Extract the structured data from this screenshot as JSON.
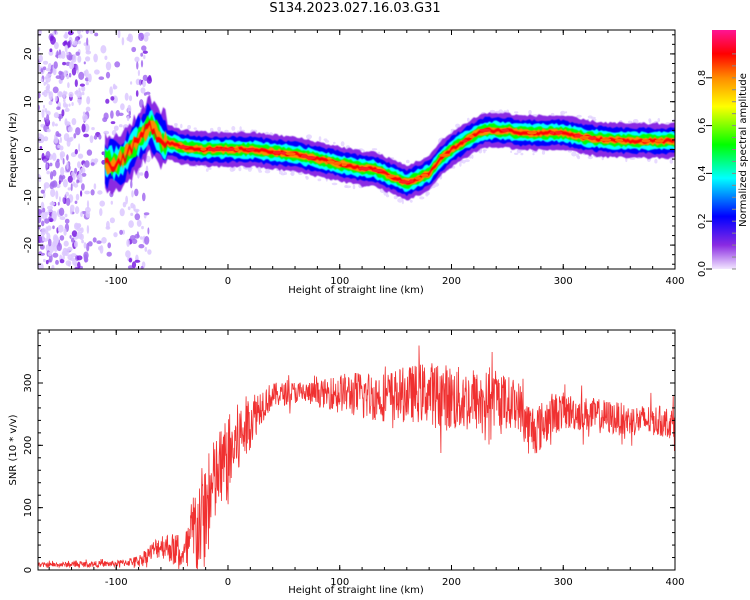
{
  "title": "S134.2023.027.16.03.G31",
  "chart_data": [
    {
      "type": "heatmap",
      "name": "spectrogram",
      "xlabel": "Height of straight line (km)",
      "ylabel": "Frequency (Hz)",
      "xlim": [
        -170,
        400
      ],
      "ylim": [
        -25,
        25
      ],
      "xticks": [
        -100,
        0,
        100,
        200,
        300,
        400
      ],
      "yticks": [
        -20,
        -10,
        0,
        10,
        20
      ],
      "colorbar": {
        "label": "Normalized spectral amplitude",
        "range": [
          0,
          1
        ],
        "ticks": [
          "0.0",
          "0.2",
          "0.4",
          "0.6",
          "0.8"
        ],
        "colors": [
          "#f2e6ff",
          "#8a2be2",
          "#0000ff",
          "#00ffff",
          "#00ff00",
          "#ffff00",
          "#ff8c00",
          "#ff0000",
          "#ff1493"
        ]
      },
      "ridge": {
        "x": [
          -150,
          -120,
          -100,
          -90,
          -80,
          -70,
          -60,
          -40,
          -20,
          0,
          20,
          40,
          60,
          80,
          100,
          110,
          120,
          130,
          140,
          150,
          160,
          170,
          180,
          190,
          200,
          210,
          220,
          230,
          240,
          250,
          260,
          270,
          280,
          290,
          300,
          320,
          340,
          360,
          380,
          400
        ],
        "freq": [
          -2,
          -3,
          -3,
          -1,
          2,
          5,
          2,
          0.5,
          0,
          0,
          0,
          -0.5,
          -1,
          -2,
          -3,
          -3.5,
          -4,
          -4,
          -5,
          -6,
          -7,
          -6,
          -5,
          -2,
          0,
          1.5,
          3,
          4,
          4,
          4,
          3.5,
          3.5,
          3.5,
          3.5,
          3.5,
          2.5,
          2,
          1.8,
          1.8,
          1.8
        ]
      }
    },
    {
      "type": "line",
      "name": "snr",
      "xlabel": "Height of straight line (km)",
      "ylabel": "SNR (10 * v/v)",
      "xlim": [
        -170,
        400
      ],
      "ylim": [
        0,
        385
      ],
      "xticks": [
        -100,
        0,
        100,
        200,
        300,
        400
      ],
      "yticks": [
        0,
        100,
        200,
        300
      ],
      "color": "#f03030",
      "envelope": {
        "x": [
          -170,
          -100,
          -80,
          -60,
          -50,
          -40,
          -30,
          -20,
          -10,
          0,
          10,
          20,
          30,
          40,
          60,
          80,
          100,
          120,
          140,
          160,
          180,
          200,
          220,
          240,
          260,
          270,
          280,
          290,
          300,
          320,
          340,
          360,
          380,
          400
        ],
        "mid": [
          8,
          10,
          15,
          40,
          35,
          20,
          60,
          90,
          150,
          180,
          210,
          240,
          265,
          280,
          285,
          282,
          285,
          280,
          278,
          282,
          285,
          275,
          270,
          275,
          265,
          225,
          230,
          250,
          255,
          250,
          245,
          240,
          240,
          235
        ],
        "amp": [
          4,
          5,
          8,
          20,
          25,
          20,
          80,
          90,
          70,
          70,
          60,
          45,
          30,
          20,
          18,
          20,
          30,
          40,
          40,
          45,
          50,
          55,
          50,
          45,
          40,
          45,
          40,
          35,
          30,
          28,
          28,
          25,
          25,
          25
        ]
      }
    }
  ]
}
